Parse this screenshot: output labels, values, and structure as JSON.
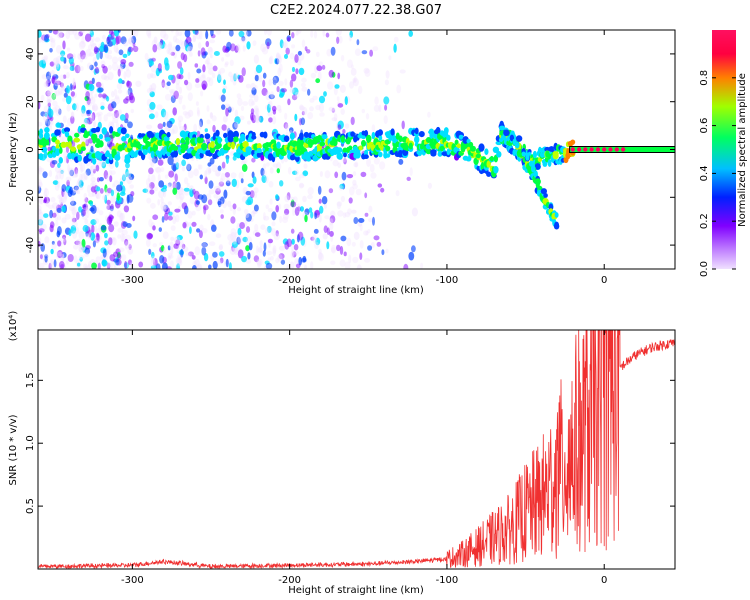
{
  "title": "C2E2.2024.077.22.38.G07",
  "colors": {
    "snr_line": "#f03030",
    "frame": "#000000"
  },
  "chart_data": [
    {
      "type": "heatmap",
      "name": "spectrogram",
      "xlabel": "Height of straight line (km)",
      "ylabel": "Frequency (Hz)",
      "xlim": [
        -360,
        45
      ],
      "ylim": [
        -50,
        50
      ],
      "xticks": [
        -300,
        -200,
        -100,
        0
      ],
      "yticks": [
        -40,
        -20,
        0,
        20,
        40
      ],
      "colorbar": {
        "label": "Normalized spectral amplitude",
        "range": [
          0.0,
          1.0
        ],
        "ticks": [
          0.0,
          0.2,
          0.4,
          0.6,
          0.8
        ],
        "colormap": [
          "#f0e0ff",
          "#8000ff",
          "#0040ff",
          "#00e0ff",
          "#00ff40",
          "#c0ff00",
          "#ff8000",
          "#ff0060"
        ]
      },
      "trace": {
        "x": [
          -300,
          -250,
          -200,
          -150,
          -120,
          -100,
          -90,
          -80,
          -75,
          -70,
          -65,
          -60,
          -55,
          -50,
          -45,
          -40,
          -35,
          -30,
          -25,
          -20,
          -10,
          0,
          10,
          20,
          30,
          45
        ],
        "y": [
          2,
          2,
          1,
          2,
          3,
          3,
          1,
          -3,
          -5,
          -8,
          6,
          5,
          2,
          -2,
          -5,
          -3,
          -3,
          -2,
          -1,
          0,
          0,
          0,
          0,
          0,
          0,
          0
        ],
        "branch2": {
          "x": [
            -65,
            -55,
            -45,
            -40,
            -35,
            -30
          ],
          "y": [
            6,
            0,
            -10,
            -18,
            -25,
            -30
          ]
        },
        "peak_amplitude": 1.0
      }
    },
    {
      "type": "line",
      "name": "snr",
      "xlabel": "Height of straight line (km)",
      "ylabel": "SNR (10 * v/v)",
      "ylabel_scale": "(x10⁴)",
      "xlim": [
        -360,
        45
      ],
      "ylim": [
        0,
        1.9
      ],
      "xticks": [
        -300,
        -200,
        -100,
        0
      ],
      "yticks": [
        0.5,
        1.0,
        1.5
      ],
      "series": [
        {
          "x": [
            -360,
            -300,
            -280,
            -250,
            -200,
            -150,
            -120,
            -100,
            -90,
            -80,
            -70,
            -60,
            -50,
            -40,
            -30,
            -25,
            -20,
            -15,
            -10,
            -5,
            0,
            10,
            20,
            30,
            40,
            45
          ],
          "y": [
            0.02,
            0.03,
            0.06,
            0.02,
            0.03,
            0.04,
            0.06,
            0.08,
            0.12,
            0.18,
            0.25,
            0.32,
            0.45,
            0.55,
            0.75,
            0.85,
            0.95,
            1.05,
            1.15,
            1.25,
            1.4,
            1.6,
            1.7,
            1.76,
            1.79,
            1.8
          ]
        }
      ]
    }
  ]
}
